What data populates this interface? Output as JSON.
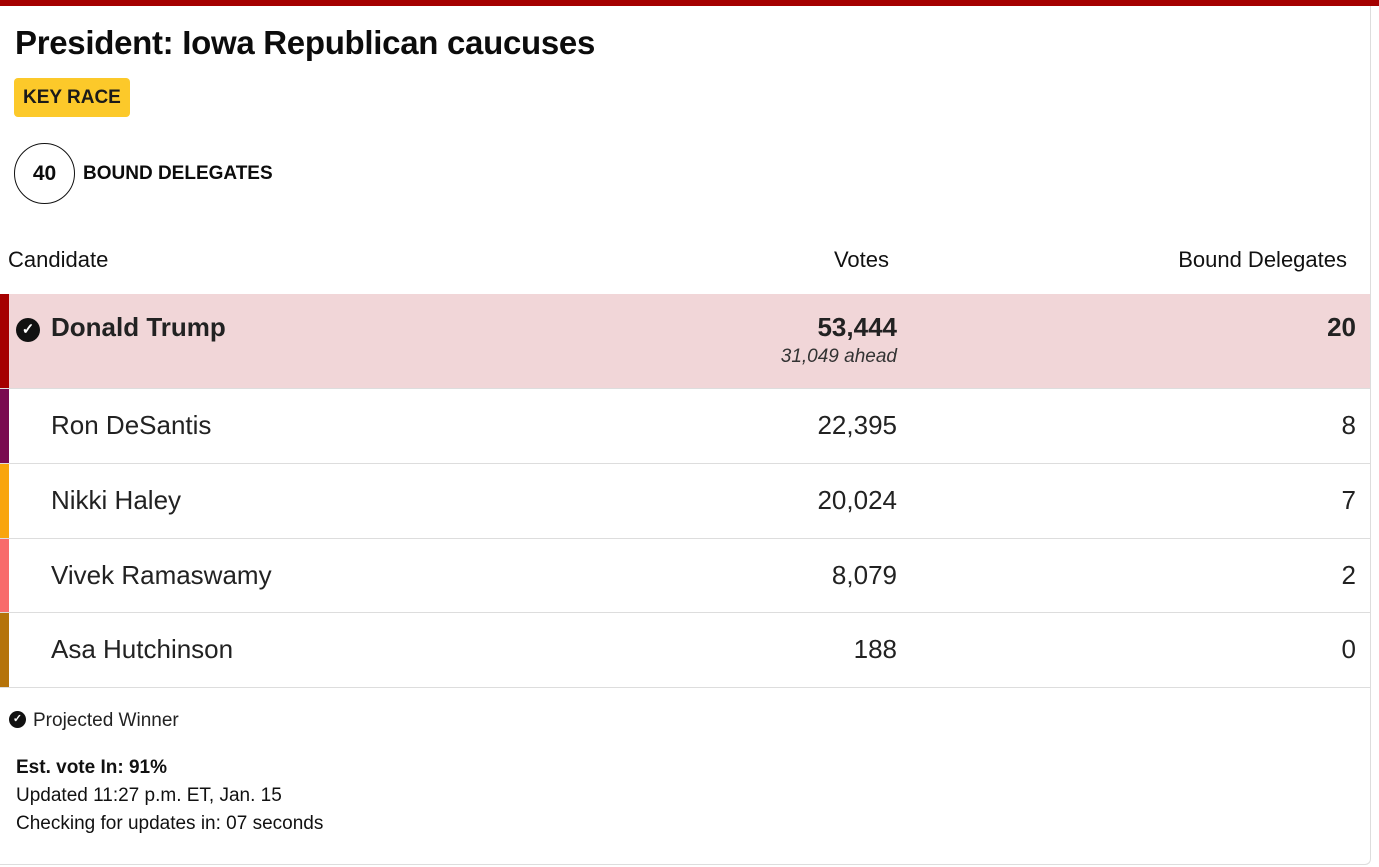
{
  "title": "President: Iowa Republican caucuses",
  "badge": "KEY RACE",
  "delegates": {
    "count": "40",
    "label": "BOUND DELEGATES"
  },
  "headers": {
    "candidate": "Candidate",
    "votes": "Votes",
    "delegates": "Bound Delegates"
  },
  "candidates": [
    {
      "name": "Donald Trump",
      "votes": "53,444",
      "ahead": "31,049 ahead",
      "delegates": "20",
      "color": "#a50000",
      "winner": true
    },
    {
      "name": "Ron DeSantis",
      "votes": "22,395",
      "delegates": "8",
      "color": "#7a0a50"
    },
    {
      "name": "Nikki Haley",
      "votes": "20,024",
      "delegates": "7",
      "color": "#f9a50c"
    },
    {
      "name": "Vivek Ramaswamy",
      "votes": "8,079",
      "delegates": "2",
      "color": "#f86b6b"
    },
    {
      "name": "Asa Hutchinson",
      "votes": "188",
      "delegates": "0",
      "color": "#b5730a"
    }
  ],
  "legend": "Projected Winner",
  "footer": {
    "est": "Est. vote In: 91%",
    "updated": "Updated 11:27 p.m. ET, Jan. 15",
    "checking": "Checking for updates in: 07 seconds"
  },
  "colors": {
    "accent": "#a50000",
    "badge": "#fcc92a",
    "winner_bg": "#f1d6d8"
  }
}
